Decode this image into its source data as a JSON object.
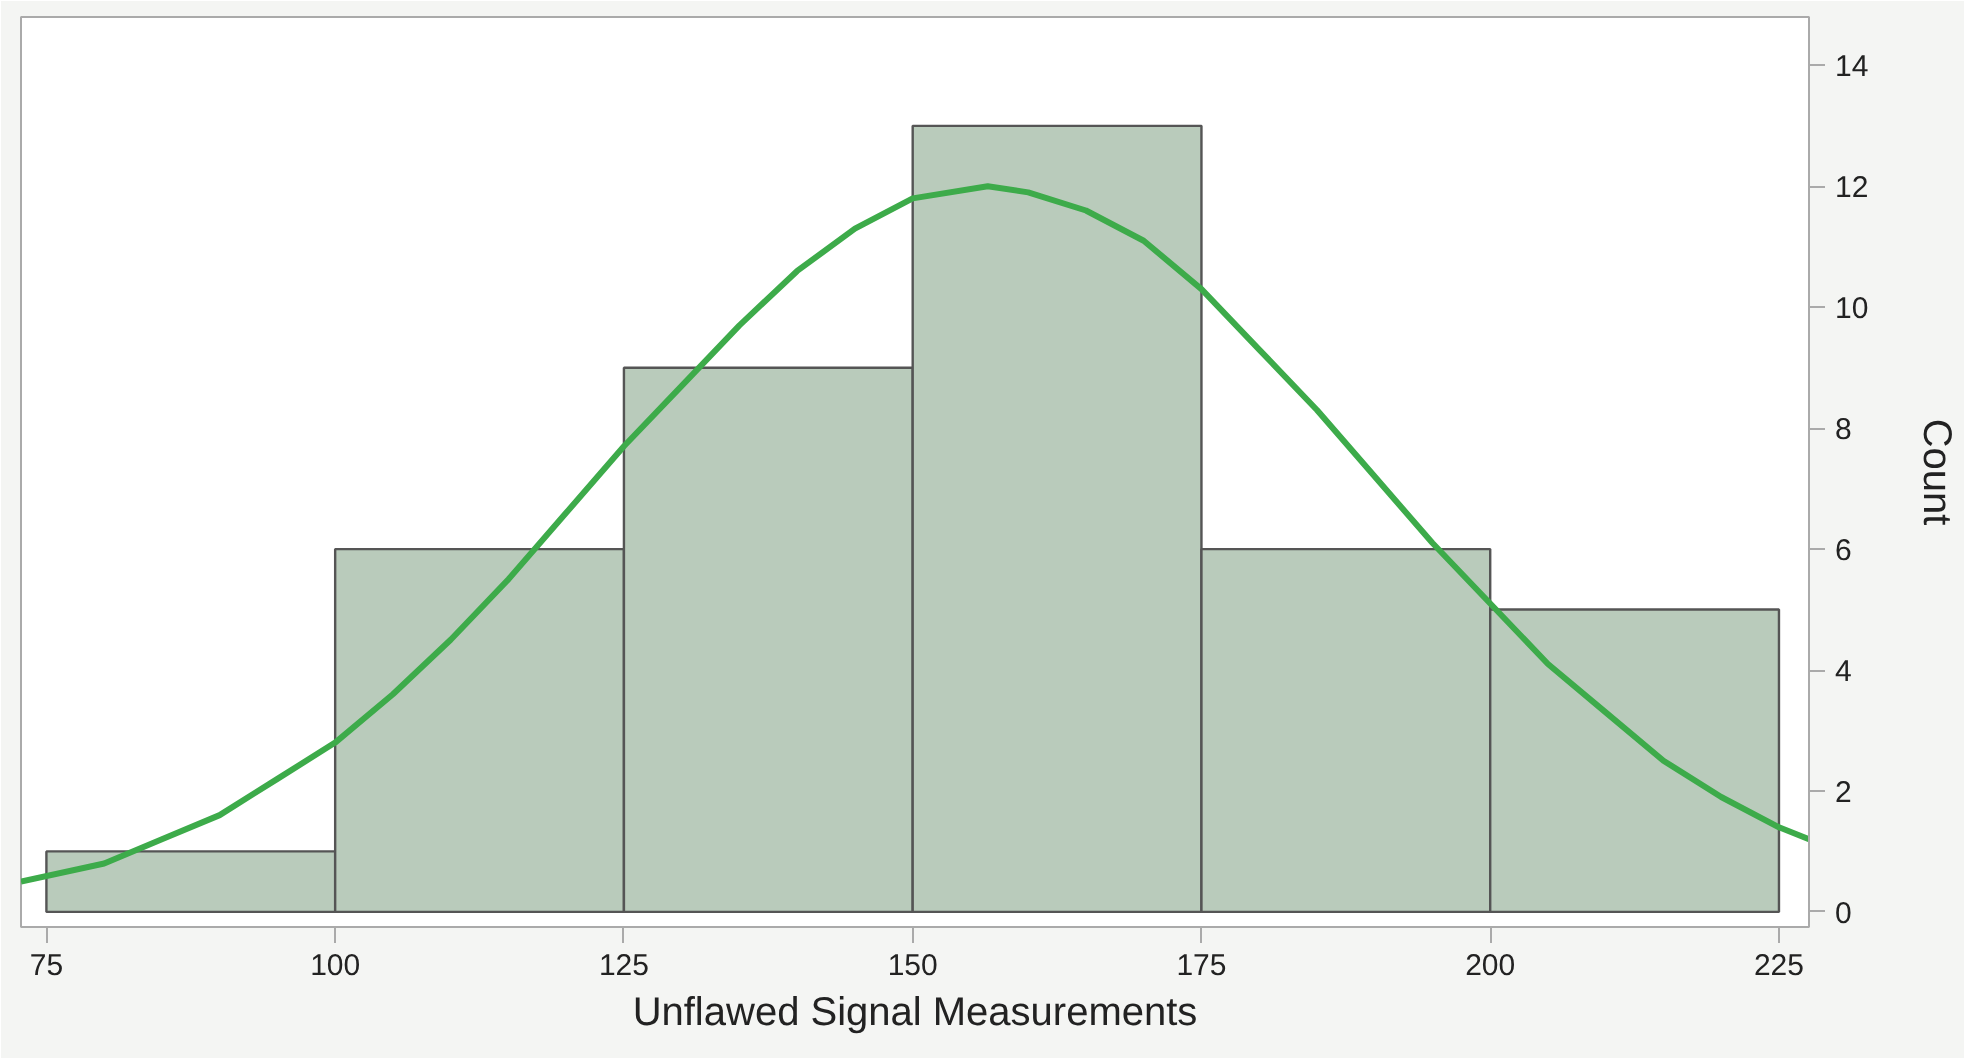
{
  "chart_data": {
    "type": "histogram",
    "xlabel": "Unflawed Signal Measurements",
    "ylabel": "Count",
    "bins": [
      75,
      100,
      125,
      150,
      175,
      200,
      225
    ],
    "values": [
      1,
      6,
      9,
      13,
      6,
      5
    ],
    "color": "#b9cbbb",
    "xlim": [
      72.8,
      227.6
    ],
    "xticks": [
      75,
      100,
      125,
      150,
      175,
      200,
      225
    ],
    "ylim": [
      -0.25,
      14.8
    ],
    "yticks": [
      0,
      2,
      4,
      6,
      8,
      10,
      12,
      14
    ],
    "grid": false,
    "series": [
      {
        "type": "line",
        "color": "#3dab4a",
        "x": [
          72.8,
          80,
          85,
          90,
          95,
          100,
          105,
          110,
          115,
          120,
          125,
          130,
          135,
          140,
          145,
          150,
          156.5,
          160,
          165,
          170,
          175,
          180,
          185,
          190,
          195,
          200,
          205,
          210,
          215,
          220,
          225,
          227.6
        ],
        "values": [
          0.5,
          0.8,
          1.2,
          1.6,
          2.2,
          2.8,
          3.6,
          4.5,
          5.5,
          6.6,
          7.7,
          8.7,
          9.7,
          10.6,
          11.3,
          11.8,
          12.0,
          11.9,
          11.6,
          11.1,
          10.3,
          9.3,
          8.3,
          7.2,
          6.1,
          5.1,
          4.1,
          3.3,
          2.5,
          1.9,
          1.4,
          1.2
        ]
      }
    ]
  }
}
